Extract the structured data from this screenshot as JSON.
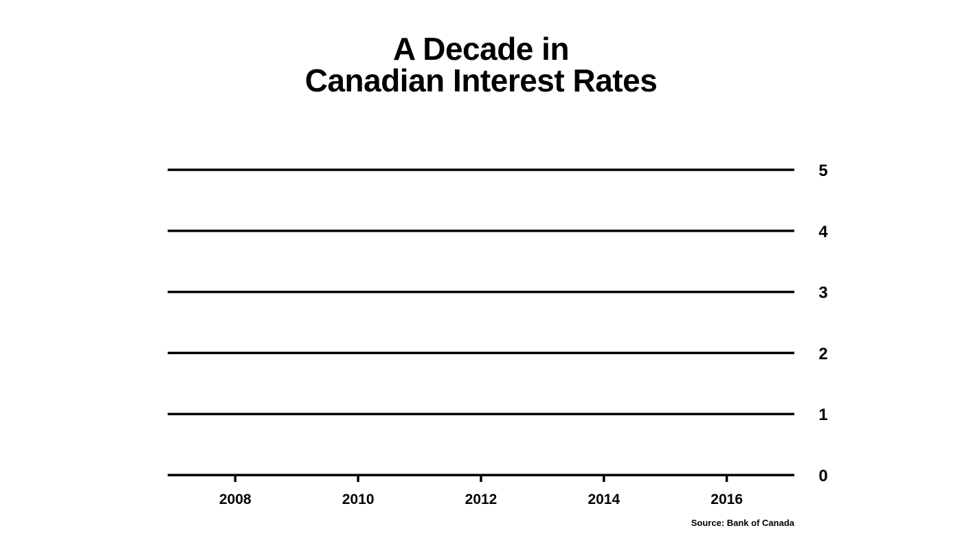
{
  "title": {
    "line1": "A Decade in",
    "line2": "Canadian Interest Rates"
  },
  "source": "Source: Bank of Canada",
  "colors": {
    "background": "#ffffff",
    "ink": "#000000"
  },
  "chart_data": {
    "type": "line",
    "title": "A Decade in Canadian Interest Rates",
    "xlabel": "",
    "ylabel": "",
    "xlim": [
      2006.9,
      2017.1
    ],
    "ylim": [
      0,
      5
    ],
    "x_ticks": [
      2008,
      2010,
      2012,
      2014,
      2016
    ],
    "x_tick_labels": [
      "2008",
      "2010",
      "2012",
      "2014",
      "2016"
    ],
    "y_ticks": [
      0,
      1,
      2,
      3,
      4,
      5
    ],
    "y_tick_labels": [
      "0",
      "1",
      "2",
      "3",
      "4",
      "5"
    ],
    "y_axis_position": "right",
    "grid": true,
    "legend": "none",
    "series": []
  }
}
